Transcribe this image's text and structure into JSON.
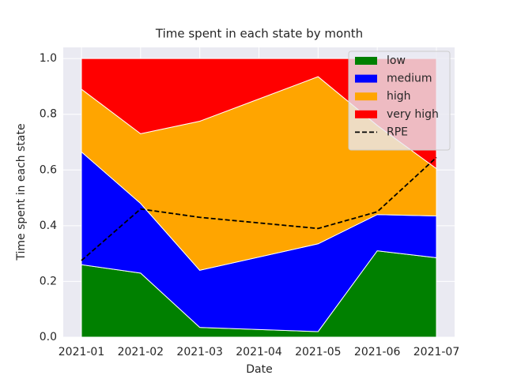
{
  "chart_data": {
    "type": "stackedarea",
    "title": "Time spent in each state by month",
    "x_label": "Date",
    "y_label": "Time spent in each state",
    "x": [
      "2021-01",
      "2021-02",
      "2021-03",
      "2021-05",
      "2021-06",
      "2021-07"
    ],
    "series": [
      {
        "name": "low",
        "color": "#008000",
        "values": [
          0.26,
          0.23,
          0.035,
          0.02,
          0.31,
          0.285
        ]
      },
      {
        "name": "medium",
        "color": "#0000ff",
        "values": [
          0.405,
          0.25,
          0.205,
          0.315,
          0.13,
          0.15
        ]
      },
      {
        "name": "high",
        "color": "#ffa500",
        "values": [
          0.225,
          0.25,
          0.535,
          0.6,
          0.32,
          0.17
        ]
      },
      {
        "name": "very high",
        "color": "#ff0000",
        "values": [
          0.11,
          0.27,
          0.225,
          0.065,
          0.24,
          0.395
        ]
      }
    ],
    "lines": [
      {
        "name": "RPE",
        "color": "#000000",
        "dashed": true,
        "values": [
          0.275,
          0.46,
          0.43,
          0.39,
          0.45,
          0.645
        ]
      }
    ],
    "xlim": [
      "2021-01",
      "2021-07"
    ],
    "xticks": [
      "2021-01",
      "2021-02",
      "2021-03",
      "2021-04",
      "2021-05",
      "2021-06",
      "2021-07"
    ],
    "ylim": [
      0,
      1.04
    ],
    "yticks": [
      {
        "value": 0,
        "label": "0.0"
      },
      0.2,
      0.4,
      0.6,
      0.8,
      {
        "value": 1,
        "label": "1.0"
      }
    ],
    "grid": true,
    "legend": "upper right"
  }
}
